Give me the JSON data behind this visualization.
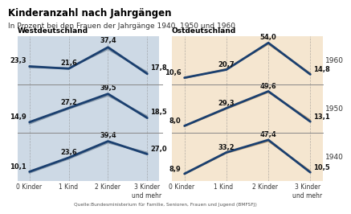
{
  "title": "Kinderanzahl nach Jahrgängen",
  "subtitle": "In Prozent bei den Frauen der Jahrgänge 1940, 1950 und 1960",
  "source": "Quelle:Bundesministerium für Familie, Senioren, Frauen und Jugend (BMFSFJ)",
  "west_label": "Westdeutschland",
  "east_label": "Ostdeutschland",
  "x_labels": [
    "0 Kinder",
    "1 Kind",
    "2 Kinder",
    "3 Kinder\nund mehr"
  ],
  "years": [
    "1960",
    "1950",
    "1940"
  ],
  "west": {
    "1960": [
      23.3,
      21.6,
      37.4,
      17.8
    ],
    "1950": [
      14.9,
      27.2,
      39.5,
      18.5
    ],
    "1940": [
      10.1,
      23.6,
      39.4,
      27.0
    ]
  },
  "east": {
    "1960": [
      10.6,
      20.7,
      54.0,
      14.8
    ],
    "1950": [
      8.0,
      29.3,
      49.6,
      13.1
    ],
    "1940": [
      8.9,
      33.2,
      47.4,
      10.5
    ]
  },
  "west_bg": "#cdd9e5",
  "east_bg": "#f5e6d0",
  "line_color_main": "#1a3f6f",
  "line_color_shadow": "#8899aa",
  "east_line_color_shadow": "#c4a882",
  "row_divider_color": "#888888",
  "dashed_line_color": "#888888",
  "title_fontsize": 8.5,
  "subtitle_fontsize": 6.5,
  "label_fontsize": 6.0,
  "year_fontsize": 6.5,
  "value_fontsize": 6.0,
  "axis_label_fontsize": 5.5
}
